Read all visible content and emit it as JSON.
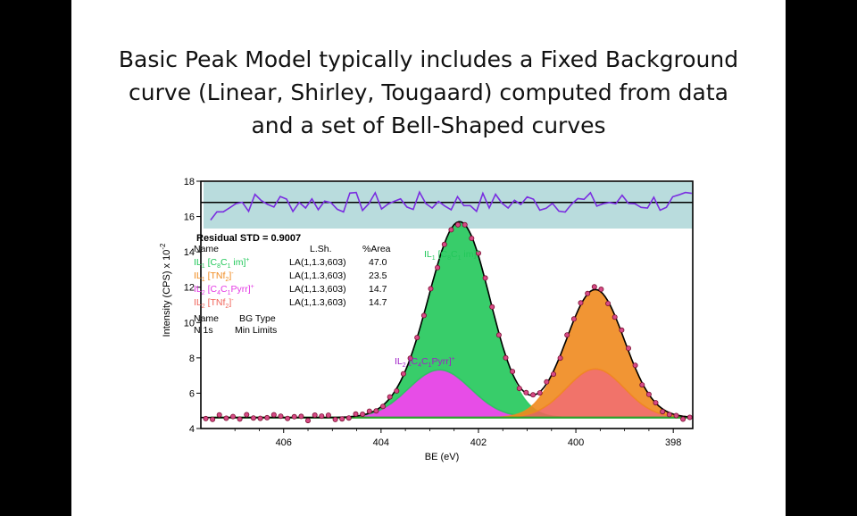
{
  "slide": {
    "title_lines": [
      "Basic Peak Model typically includes a Fixed Background",
      "curve (Linear, Shirley, Tougaard) computed from data",
      "and a set of Bell-Shaped curves"
    ]
  },
  "chart_data": {
    "type": "line",
    "xlabel": "BE (eV)",
    "ylabel": "Intensity (CPS) x 10",
    "ylabel_exponent": "-2",
    "x_reversed": true,
    "xlim": [
      407.7,
      397.6
    ],
    "ylim": [
      4,
      18
    ],
    "x_ticks": [
      "406",
      "404",
      "402",
      "400",
      "398"
    ],
    "y_ticks": [
      "4",
      "6",
      "8",
      "10",
      "12",
      "14",
      "16",
      "18"
    ],
    "residual_label": "Residual STD = 0.9007",
    "table_headers": {
      "name": "Name",
      "lsh": "L.Sh.",
      "area": "%Area"
    },
    "components": [
      {
        "name": "IL1 [C8C1 im]+",
        "line_shape": "LA(1,1.3,603)",
        "area_percent": "47.0",
        "color": "#22c85a",
        "center": 402.3,
        "height": 9.0,
        "fwhm": 1.4
      },
      {
        "name": "IL1 [TNf2]-",
        "line_shape": "LA(1,1.3,603)",
        "area_percent": "23.5",
        "color": "#f08a1e",
        "center": 399.6,
        "height": 4.5,
        "fwhm": 1.4
      },
      {
        "name": "IL2 [C4C1Pyrr]+",
        "line_shape": "LA(1,1.3,603)",
        "area_percent": "14.7",
        "color": "#e43ae4",
        "center": 402.8,
        "height": 2.7,
        "fwhm": 1.5
      },
      {
        "name": "IL2 [TNf2]-",
        "line_shape": "LA(1,1.3,603)",
        "area_percent": "14.7",
        "color": "#f0645a",
        "center": 399.6,
        "height": 2.75,
        "fwhm": 1.4
      }
    ],
    "background": {
      "type": "linear",
      "value": 4.62,
      "color": "#2ca02c"
    },
    "region_headers": {
      "name": "Name",
      "bg_type": "BG Type"
    },
    "region": {
      "name": "N 1s",
      "bg_type": "Min Limits"
    },
    "annotations": [
      {
        "text": "IL1 [C8C1 im]+",
        "color": "#22c85a"
      },
      {
        "text": "IL2 [C4C1Pyrr]+",
        "color": "#a020c8"
      }
    ]
  }
}
